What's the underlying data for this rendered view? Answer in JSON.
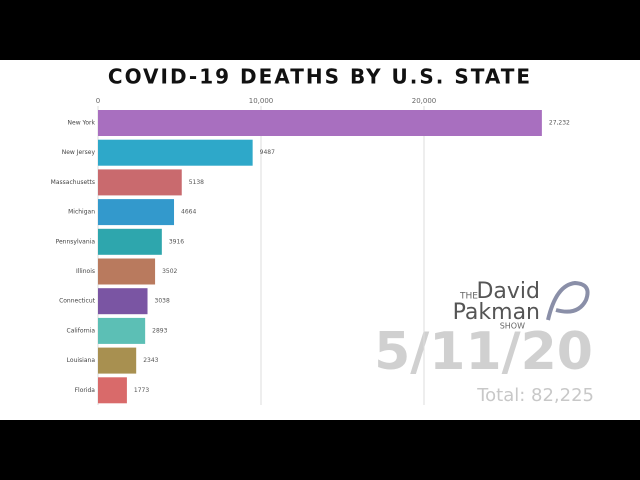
{
  "chart_data": {
    "type": "barh",
    "title": "COVID-19 DEATHS BY U.S. STATE",
    "categories": [
      "New York",
      "New Jersey",
      "Massachusetts",
      "Michigan",
      "Pennsylvania",
      "Illinois",
      "Connecticut",
      "California",
      "Louisiana",
      "Florida"
    ],
    "values": [
      27232,
      9487,
      5138,
      4664,
      3916,
      3502,
      3038,
      2893,
      2343,
      1773
    ],
    "value_labels": [
      "27,232",
      "9487",
      "5138",
      "4664",
      "3916",
      "3502",
      "3038",
      "2893",
      "2343",
      "1773"
    ],
    "colors": [
      "#a86fbf",
      "#2ea8c9",
      "#c96a6e",
      "#3399cc",
      "#2ea6ad",
      "#b97a5e",
      "#7a55a3",
      "#5cbfb5",
      "#a89050",
      "#d96a6a"
    ],
    "xlim": [
      0,
      30000
    ],
    "xticks": [
      0,
      {
        "value": 10000,
        "label": "10,000"
      },
      {
        "value": 20000,
        "label": "20,000"
      }
    ],
    "grid": true,
    "date": "5/11/20",
    "total": "Total: 82,225"
  },
  "logo": {
    "the": "THE",
    "name1": "David",
    "name2": "Pakman",
    "show": "SHOW"
  }
}
